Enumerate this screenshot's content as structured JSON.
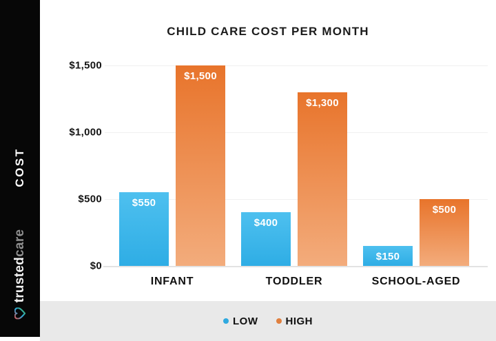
{
  "sidebar": {
    "axis_label": "COST",
    "brand": {
      "trusted": "trusted",
      "care": "care"
    }
  },
  "chart_data": {
    "type": "bar",
    "title": "CHILD CARE COST PER MONTH",
    "ylabel": "COST",
    "xlabel": "",
    "categories": [
      "INFANT",
      "TODDLER",
      "SCHOOL-AGED"
    ],
    "series": [
      {
        "name": "LOW",
        "color": "#2fa9df",
        "values": [
          550,
          400,
          150
        ],
        "labels": [
          "$550",
          "$400",
          "$150"
        ]
      },
      {
        "name": "HIGH",
        "color": "#e0803f",
        "values": [
          1500,
          1300,
          500
        ],
        "labels": [
          "$1,500",
          "$1,300",
          "$500"
        ]
      }
    ],
    "ylim": [
      0,
      1500
    ],
    "yticks": [
      {
        "value": 0,
        "label": "$0"
      },
      {
        "value": 500,
        "label": "$500"
      },
      {
        "value": 1000,
        "label": "$1,000"
      },
      {
        "value": 1500,
        "label": "$1,500"
      }
    ],
    "grid": true,
    "legend_position": "bottom"
  },
  "legend": {
    "items": [
      {
        "label": "LOW",
        "color": "#2fa9df"
      },
      {
        "label": "HIGH",
        "color": "#e0803f"
      }
    ]
  },
  "colors": {
    "low_bar_top": "#4ec0ef",
    "low_bar_bottom": "#2eade5",
    "high_bar_top": "#e8742b",
    "high_bar_bottom": "#f3ac7c",
    "sidebar_bg": "#070707",
    "legend_band_bg": "#e9e9e9"
  }
}
